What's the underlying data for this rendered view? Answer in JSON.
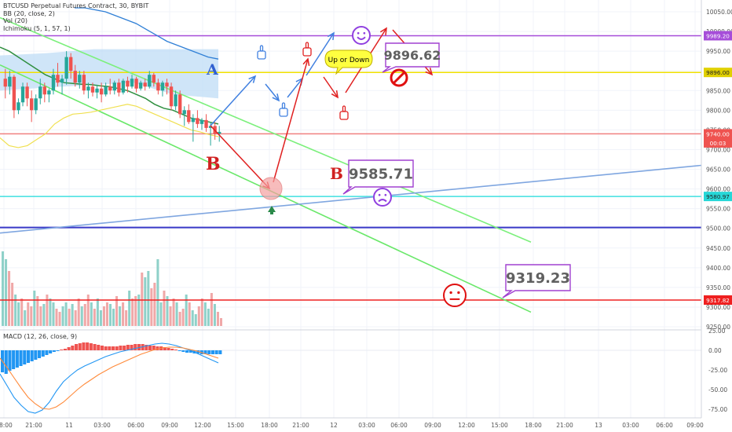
{
  "legend": {
    "symbol": "BTCUSD Perpetual Futures Contract, 30, BYBIT",
    "bb": "BB (20, close, 2)",
    "vol": "Vol (20)",
    "ichimoku": "Ichimoku (5, 1, 57, 1)"
  },
  "macd_legend": "MACD (12, 26, close, 9)",
  "chart_data": {
    "type": "candlestick",
    "price_axis": {
      "ticks": [
        "10050.00",
        "10000.00",
        "9950.00",
        "9900.00",
        "9850.00",
        "9800.00",
        "9750.00",
        "9700.00",
        "9650.00",
        "9600.00",
        "9550.00",
        "9500.00",
        "9450.00",
        "9400.00",
        "9350.00",
        "9300.00",
        "9250.00"
      ],
      "range": [
        9250,
        10060
      ]
    },
    "macd_axis": {
      "ticks": [
        "25.00",
        "0.00",
        "-25.00",
        "-50.00",
        "-75.00"
      ],
      "range": [
        -85,
        30
      ]
    },
    "time_axis": [
      "18:00",
      "21:00",
      "11",
      "03:00",
      "06:00",
      "09:00",
      "12:00",
      "15:00",
      "18:00",
      "21:00",
      "12",
      "03:00",
      "06:00",
      "09:00",
      "12:00",
      "15:00",
      "18:00",
      "21:00",
      "13",
      "03:00",
      "06:00",
      "09:00"
    ],
    "price_badges": [
      {
        "label": "9989.20",
        "value": 9989.2,
        "color": "#a64dd9"
      },
      {
        "label": "9896.00",
        "value": 9896,
        "color": "#e0d000"
      },
      {
        "label": "9740.00",
        "value": 9740,
        "color": "#ef5350"
      },
      {
        "label": "00:03",
        "value": 9717,
        "color": "#ef5350"
      },
      {
        "label": "9580.97",
        "value": 9580.97,
        "color": "#26d7d7"
      },
      {
        "label": "9317.82",
        "value": 9317.82,
        "color": "#ef2020"
      }
    ],
    "horizontal_levels": [
      {
        "value": 9989.2,
        "color": "#a64dd9"
      },
      {
        "value": 9896,
        "color": "#f0e000"
      },
      {
        "value": 9740,
        "color": "#f08080"
      },
      {
        "value": 9580.97,
        "color": "#40e0e0"
      },
      {
        "value": 9502,
        "color": "#3a3ac8"
      },
      {
        "value": 9317.82,
        "color": "#ef2020"
      }
    ],
    "candles": [
      [
        9880,
        9905,
        9830,
        9860
      ],
      [
        9860,
        9900,
        9840,
        9885
      ],
      [
        9885,
        9890,
        9780,
        9800
      ],
      [
        9800,
        9830,
        9790,
        9820
      ],
      [
        9820,
        9870,
        9810,
        9860
      ],
      [
        9860,
        9870,
        9810,
        9830
      ],
      [
        9830,
        9850,
        9770,
        9800
      ],
      [
        9800,
        9840,
        9790,
        9830
      ],
      [
        9830,
        9880,
        9815,
        9860
      ],
      [
        9860,
        9870,
        9820,
        9840
      ],
      [
        9840,
        9855,
        9820,
        9850
      ],
      [
        9850,
        9905,
        9840,
        9890
      ],
      [
        9890,
        9920,
        9860,
        9870
      ],
      [
        9870,
        9890,
        9840,
        9880
      ],
      [
        9880,
        9950,
        9865,
        9935
      ],
      [
        9935,
        9945,
        9880,
        9900
      ],
      [
        9900,
        9915,
        9860,
        9870
      ],
      [
        9870,
        9900,
        9855,
        9890
      ],
      [
        9890,
        9900,
        9840,
        9850
      ],
      [
        9850,
        9870,
        9830,
        9860
      ],
      [
        9860,
        9870,
        9835,
        9845
      ],
      [
        9845,
        9865,
        9830,
        9855
      ],
      [
        9855,
        9870,
        9820,
        9840
      ],
      [
        9840,
        9870,
        9835,
        9860
      ],
      [
        9860,
        9880,
        9840,
        9850
      ],
      [
        9850,
        9875,
        9840,
        9870
      ],
      [
        9870,
        9880,
        9835,
        9845
      ],
      [
        9845,
        9880,
        9840,
        9875
      ],
      [
        9875,
        9885,
        9845,
        9860
      ],
      [
        9860,
        9890,
        9855,
        9880
      ],
      [
        9880,
        9885,
        9845,
        9855
      ],
      [
        9855,
        9875,
        9850,
        9870
      ],
      [
        9870,
        9880,
        9850,
        9860
      ],
      [
        9860,
        9900,
        9855,
        9890
      ],
      [
        9890,
        9895,
        9860,
        9870
      ],
      [
        9870,
        9880,
        9840,
        9850
      ],
      [
        9850,
        9875,
        9835,
        9870
      ],
      [
        9870,
        9880,
        9840,
        9860
      ],
      [
        9860,
        9870,
        9800,
        9810
      ],
      [
        9810,
        9850,
        9800,
        9840
      ],
      [
        9840,
        9850,
        9780,
        9790
      ],
      [
        9790,
        9810,
        9760,
        9800
      ],
      [
        9800,
        9815,
        9765,
        9770
      ],
      [
        9770,
        9790,
        9720,
        9780
      ],
      [
        9780,
        9800,
        9755,
        9765
      ],
      [
        9765,
        9780,
        9750,
        9775
      ],
      [
        9775,
        9790,
        9745,
        9755
      ],
      [
        9755,
        9770,
        9710,
        9760
      ],
      [
        9760,
        9770,
        9725,
        9740
      ],
      [
        9740,
        9760,
        9720,
        9745
      ]
    ],
    "volumes": [
      95,
      85,
      70,
      55,
      40,
      30,
      35,
      20,
      30,
      25,
      45,
      38,
      25,
      28,
      40,
      35,
      30,
      22,
      18,
      25,
      30,
      22,
      28,
      20,
      35,
      25,
      28,
      40,
      30,
      22,
      35,
      20,
      25,
      30,
      28,
      22,
      38,
      25,
      30,
      20,
      45,
      35,
      38,
      40,
      68,
      62,
      70,
      48,
      55,
      85,
      30,
      45,
      38,
      25,
      35,
      30,
      18,
      22,
      40,
      30,
      20,
      15,
      25,
      35,
      30,
      22,
      42,
      28,
      18,
      10
    ],
    "ichimoku_cloud": {
      "top": 9955,
      "bottom": 9870
    },
    "bb_upper": [
      10060,
      10060,
      10055,
      10050,
      10040,
      10030,
      10020,
      10005,
      9990,
      9975,
      9965,
      9955,
      9945,
      9935,
      9930
    ],
    "bb_middle": [
      9960,
      9950,
      9935,
      9920,
      9905,
      9890,
      9880,
      9870,
      9868,
      9866,
      9865,
      9862,
      9860,
      9855,
      9850,
      9840,
      9830,
      9815,
      9805,
      9800,
      9790,
      9780,
      9775,
      9770,
      9765
    ],
    "bb_lower": [
      9730,
      9710,
      9705,
      9710,
      9725,
      9740,
      9765,
      9780,
      9790,
      9792,
      9795,
      9800,
      9805,
      9810,
      9815,
      9810,
      9800,
      9790,
      9780,
      9770,
      9760,
      9750,
      9745,
      9738,
      9733
    ],
    "macd_hist": [
      -28,
      -30,
      -26,
      -24,
      -22,
      -20,
      -18,
      -16,
      -14,
      -12,
      -10,
      -8,
      -6,
      -4,
      -2,
      -1,
      1,
      2,
      4,
      6,
      8,
      9,
      10,
      10,
      9,
      8,
      7,
      6,
      5,
      5,
      5,
      5,
      6,
      6,
      7,
      7,
      8,
      8,
      8,
      7,
      6,
      6,
      5,
      5,
      4,
      3,
      2,
      1,
      -1,
      -2,
      -3,
      -3,
      -4,
      -4,
      -5,
      -5,
      -5,
      -5,
      -5,
      -5
    ],
    "macd_line": [
      -30,
      -45,
      -60,
      -70,
      -78,
      -80,
      -76,
      -66,
      -52,
      -40,
      -32,
      -25,
      -20,
      -16,
      -12,
      -8,
      -5,
      -2,
      0,
      2,
      4,
      6,
      8,
      9,
      8,
      6,
      3,
      0,
      -4,
      -8,
      -12,
      -16
    ],
    "signal_line": [
      -10,
      -22,
      -35,
      -48,
      -60,
      -68,
      -74,
      -75,
      -72,
      -66,
      -58,
      -50,
      -43,
      -37,
      -31,
      -26,
      -21,
      -17,
      -13,
      -9,
      -5,
      -2,
      1,
      3,
      4,
      4,
      3,
      1,
      -1,
      -4,
      -7,
      -10
    ],
    "annotations": [
      {
        "text": "A",
        "color": "#3060d0"
      },
      {
        "text": "B",
        "color": "#d02020"
      },
      {
        "text": "B",
        "color": "#d02020"
      },
      {
        "text": "9896.62",
        "color": "#606060",
        "border": "#a040d0"
      },
      {
        "text": "9585.71",
        "color": "#606060",
        "border": "#a040d0"
      },
      {
        "text": "9319.23",
        "color": "#606060",
        "border": "#a040d0"
      },
      {
        "text": "Up or Down",
        "color": "#000000",
        "bg": "#ffff40"
      }
    ]
  }
}
